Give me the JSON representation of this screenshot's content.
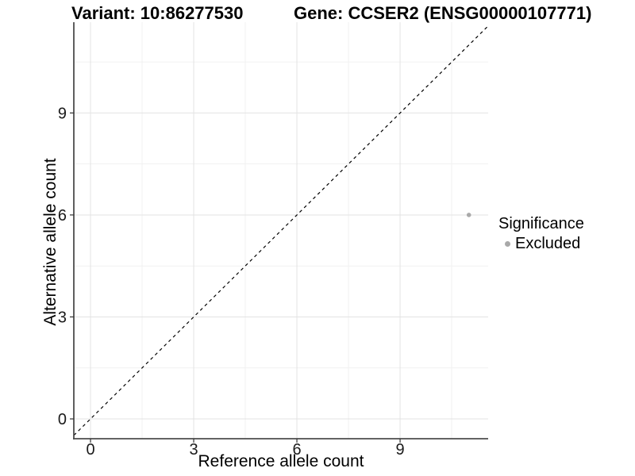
{
  "titles": {
    "variant": "Variant: 10:86277530",
    "gene": "Gene: CCSER2 (ENSG00000107771)"
  },
  "axes": {
    "x": {
      "label": "Reference allele count",
      "ticks": [
        0,
        3,
        6,
        9
      ],
      "minor_ticks": [
        1.5,
        4.5,
        7.5,
        10.5
      ],
      "range": [
        -0.485,
        11.56
      ]
    },
    "y": {
      "label": "Alternative allele count",
      "ticks": [
        0,
        3,
        6,
        9
      ],
      "minor_ticks": [
        1.5,
        4.5,
        7.5,
        10.5
      ],
      "range": [
        -0.583,
        11.67
      ]
    }
  },
  "legend": {
    "title": "Significance",
    "items": [
      {
        "label": "Excluded",
        "color": "#a9a9a9"
      }
    ]
  },
  "chart_data": {
    "type": "scatter",
    "title": "Variant: 10:86277530 | Gene: CCSER2 (ENSG00000107771)",
    "xlabel": "Reference allele count",
    "ylabel": "Alternative allele count",
    "xlim": [
      -0.485,
      11.56
    ],
    "ylim": [
      -0.583,
      11.67
    ],
    "xticks": [
      0,
      3,
      6,
      9
    ],
    "yticks": [
      0,
      3,
      6,
      9
    ],
    "grid": true,
    "legend_position": "right",
    "series": [
      {
        "name": "Excluded",
        "color": "#a9a9a9",
        "points": [
          {
            "x": 11,
            "y": 6
          }
        ]
      }
    ],
    "reference_line": {
      "slope": 1,
      "intercept": 0,
      "style": "dashed",
      "color": "#000000"
    }
  },
  "style": {
    "grid_major": "#e3e3e3",
    "grid_minor": "#f1f1f1",
    "axis_line": "#4d4d4d",
    "tick_mark": "#333333",
    "point_radius": 2.8
  }
}
